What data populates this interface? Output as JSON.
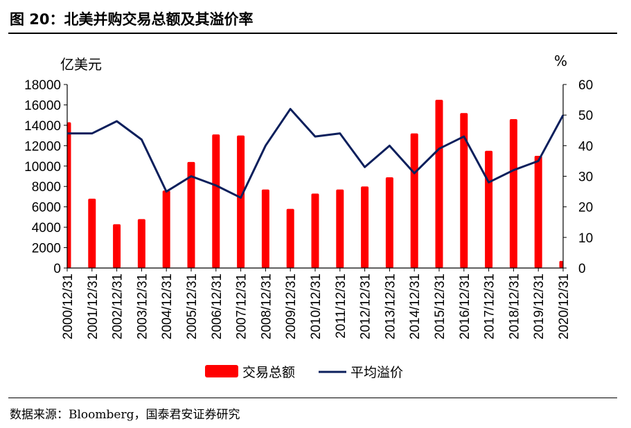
{
  "figure": {
    "title": "图 20：北美并购交易总额及其溢价率",
    "source": "数据来源：Bloomberg，国泰君安证券研究"
  },
  "colors": {
    "bar": "#ff0000",
    "line": "#0b1f5c",
    "axis": "#000000"
  },
  "chart_data": {
    "type": "bar+line",
    "categories": [
      "2000/12/31",
      "2001/12/31",
      "2002/12/31",
      "2003/12/31",
      "2004/12/31",
      "2005/12/31",
      "2006/12/31",
      "2007/12/31",
      "2008/12/31",
      "2009/12/31",
      "2010/12/31",
      "2011/12/31",
      "2012/12/31",
      "2013/12/31",
      "2014/12/31",
      "2015/12/31",
      "2016/12/31",
      "2017/12/31",
      "2018/12/31",
      "2019/12/31",
      "2020/12/31"
    ],
    "y_left": {
      "unit": "亿美元",
      "range": [
        0,
        18000
      ],
      "ticks": [
        0,
        2000,
        4000,
        6000,
        8000,
        10000,
        12000,
        14000,
        16000,
        18000
      ]
    },
    "y_right": {
      "unit": "%",
      "range": [
        0,
        60
      ],
      "ticks": [
        0,
        10,
        20,
        30,
        40,
        50,
        60
      ]
    },
    "series": [
      {
        "name": "交易总额",
        "type": "bar",
        "axis": "left",
        "values": [
          14300,
          6800,
          4300,
          4800,
          7600,
          10400,
          13100,
          13000,
          7700,
          5800,
          7300,
          7700,
          8000,
          8900,
          13200,
          16500,
          15200,
          11500,
          14600,
          11000,
          700
        ]
      },
      {
        "name": "平均溢价",
        "type": "line",
        "axis": "right",
        "values": [
          44,
          44,
          48,
          42,
          25,
          30,
          27,
          23,
          40,
          52,
          43,
          44,
          33,
          40,
          31,
          39,
          43,
          28,
          32,
          35,
          50
        ]
      }
    ],
    "grid": false,
    "legend_position": "bottom"
  }
}
